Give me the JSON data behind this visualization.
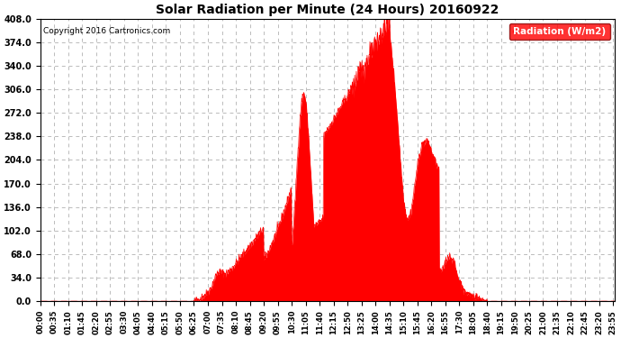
{
  "title": "Solar Radiation per Minute (24 Hours) 20160922",
  "copyright": "Copyright 2016 Cartronics.com",
  "legend_label": "Radiation (W/m2)",
  "fill_color": "#FF0000",
  "line_color": "#FF0000",
  "background_color": "#FFFFFF",
  "grid_color": "#BBBBBB",
  "ylim": [
    0.0,
    408.0
  ],
  "yticks": [
    0.0,
    34.0,
    68.0,
    102.0,
    136.0,
    170.0,
    204.0,
    238.0,
    272.0,
    306.0,
    340.0,
    374.0,
    408.0
  ],
  "total_minutes": 1440,
  "xtick_step": 35,
  "sunrise_minute": 385,
  "sunset_minute": 1120,
  "peak_minute": 875,
  "peak_value": 408.0
}
